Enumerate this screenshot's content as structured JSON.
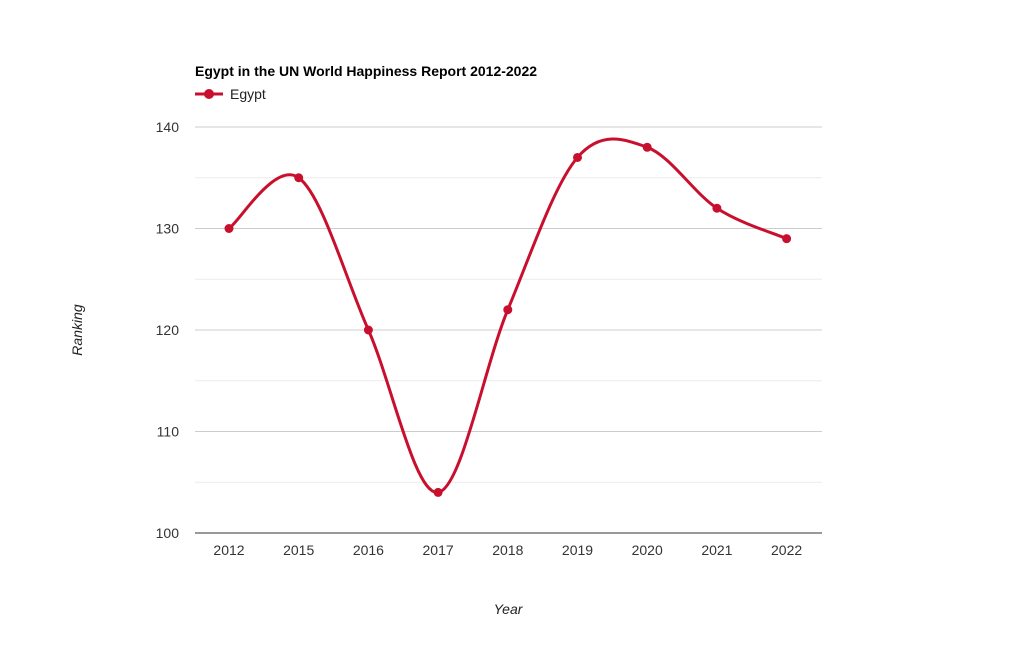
{
  "chart_data": {
    "type": "line",
    "title": "Egypt in the UN World Happiness Report 2012-2022",
    "xlabel": "Year",
    "ylabel": "Ranking",
    "categories": [
      "2012",
      "2015",
      "2016",
      "2017",
      "2018",
      "2019",
      "2020",
      "2021",
      "2022"
    ],
    "series": [
      {
        "name": "Egypt",
        "color": "#c8102e",
        "values": [
          130,
          135,
          120,
          104,
          122,
          137,
          138,
          132,
          129
        ]
      }
    ],
    "ylim": [
      100,
      140
    ],
    "yticks": [
      "100",
      "110",
      "120",
      "130",
      "140"
    ],
    "grid": true,
    "minor_grid": true,
    "smooth": true,
    "legend_position": "top-left"
  }
}
